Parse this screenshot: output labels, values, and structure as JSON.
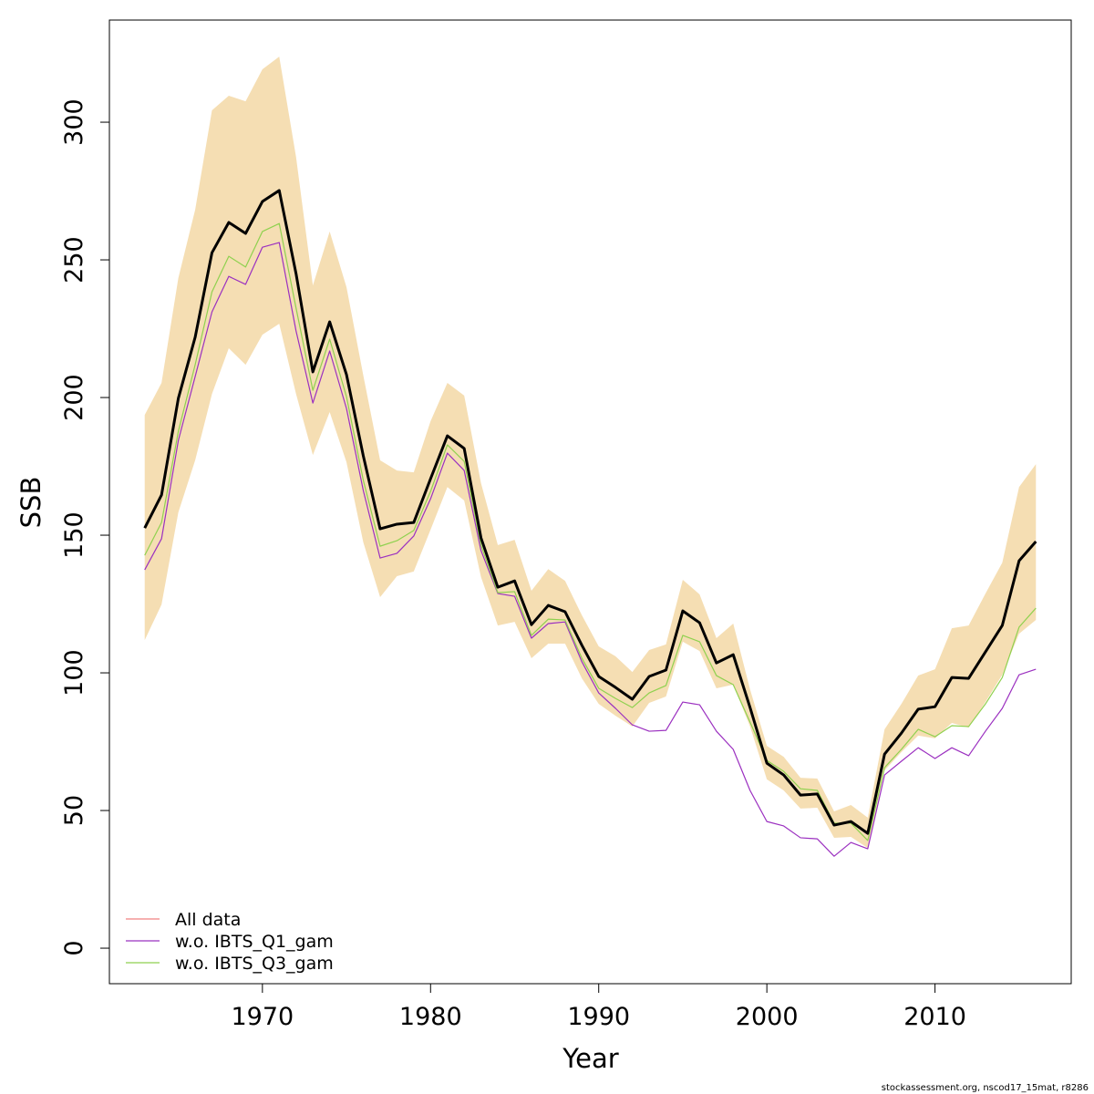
{
  "chart_data": {
    "type": "line",
    "x": [
      1963,
      1964,
      1965,
      1966,
      1967,
      1968,
      1969,
      1970,
      1971,
      1972,
      1973,
      1974,
      1975,
      1976,
      1977,
      1978,
      1979,
      1980,
      1981,
      1982,
      1983,
      1984,
      1985,
      1986,
      1987,
      1988,
      1989,
      1990,
      1991,
      1992,
      1993,
      1994,
      1995,
      1996,
      1997,
      1998,
      1999,
      2000,
      2001,
      2002,
      2003,
      2004,
      2005,
      2006,
      2007,
      2008,
      2009,
      2010,
      2011,
      2012,
      2013,
      2014,
      2015,
      2016
    ],
    "xlabel": "Year",
    "ylabel": "SSB",
    "xlim": [
      1960.9,
      2018.1
    ],
    "ylim": [
      -12.9,
      337.1
    ],
    "xticks": [
      1970,
      1980,
      1990,
      2000,
      2010
    ],
    "yticks": [
      0,
      50,
      100,
      150,
      200,
      250,
      300
    ],
    "legend": "bottomleft",
    "band": {
      "color": "#f5deb3",
      "lower": [
        111.9,
        124.8,
        158.3,
        177.2,
        201.3,
        217.9,
        211.9,
        222.8,
        226.8,
        201.3,
        179.1,
        194.7,
        176.5,
        147.4,
        127.5,
        135.1,
        136.8,
        152,
        167.5,
        162.6,
        134.8,
        117.2,
        118.5,
        105.3,
        110.6,
        110.6,
        98,
        88.7,
        84.4,
        80.5,
        89.1,
        91.4,
        111.3,
        107.9,
        94.4,
        95.7,
        80.5,
        61.3,
        57.3,
        50.7,
        51,
        40.1,
        40.4,
        36.4,
        64.6,
        71.2,
        77.2,
        76.2,
        81.8,
        80.1,
        89.4,
        99.3,
        114.2,
        119.2
      ],
      "upper": [
        193.7,
        205.3,
        243.4,
        268.2,
        304.3,
        309.6,
        307.6,
        319.2,
        323.8,
        287.4,
        240.7,
        260.3,
        240.1,
        208,
        177.2,
        173.5,
        172.8,
        191.4,
        205.3,
        200.7,
        168.9,
        146.4,
        148.3,
        129.8,
        137.7,
        133.4,
        120.9,
        109.6,
        106,
        100.3,
        108.3,
        110.3,
        133.8,
        128.5,
        112.6,
        117.9,
        94,
        73.5,
        69.5,
        61.9,
        61.6,
        49.7,
        52,
        47.4,
        79.5,
        88.7,
        99,
        101.3,
        116.2,
        117.2,
        128.8,
        140,
        167.5,
        175.8
      ]
    },
    "estimate": {
      "color": "#000000",
      "values": [
        152.6,
        164.6,
        199.7,
        221.9,
        252.6,
        263.6,
        259.6,
        271.2,
        275.2,
        245,
        209.3,
        227.5,
        208.3,
        178.8,
        152.3,
        154,
        154.6,
        170.5,
        186.1,
        181.5,
        149,
        131.1,
        133.4,
        117.5,
        124.5,
        122.2,
        110,
        98.7,
        94.7,
        90.4,
        98.7,
        101,
        122.5,
        118.2,
        103.6,
        106.6,
        87.4,
        67.2,
        62.9,
        55.6,
        56,
        44.7,
        46,
        41.7,
        70.5,
        78.1,
        86.8,
        87.7,
        98.3,
        98,
        107.6,
        117.2,
        140.7,
        147.7
      ]
    },
    "series": [
      {
        "name": "All data",
        "color": "#f08080",
        "values": [
          152.6,
          164.6,
          199.7,
          221.9,
          252.6,
          263.6,
          259.6,
          271.2,
          275.2,
          245,
          209.3,
          227.5,
          208.3,
          178.8,
          152.3,
          154,
          154.6,
          170.5,
          186.1,
          181.5,
          149,
          131.1,
          133.4,
          117.5,
          124.5,
          122.2,
          110,
          98.7,
          94.7,
          90.4,
          98.7,
          101,
          122.5,
          118.2,
          103.6,
          106.6,
          87.4,
          67.2,
          62.9,
          55.6,
          56,
          44.7,
          46,
          41.7,
          70.5,
          78.1,
          86.8,
          87.7,
          98.3,
          98,
          107.6,
          117.2,
          140.7,
          147.7
        ]
      },
      {
        "name": "w.o. IBTS_Q1_gam",
        "color": "#9b30c0",
        "values": [
          137.4,
          148.7,
          184.4,
          207.6,
          231.1,
          244,
          241.1,
          254.6,
          256.3,
          224.2,
          198,
          216.9,
          196,
          166.2,
          141.7,
          143.4,
          149.7,
          163.2,
          179.8,
          173.5,
          144.4,
          128.8,
          127.8,
          112.6,
          117.9,
          118.5,
          104,
          92.7,
          87.1,
          81.1,
          78.8,
          79.1,
          89.4,
          88.4,
          78.8,
          72.2,
          57.3,
          46,
          44.4,
          40.1,
          39.7,
          33.4,
          38.4,
          36.1,
          62.9,
          67.9,
          72.8,
          68.9,
          72.8,
          69.9,
          78.8,
          87.1,
          99.3,
          101.3
        ]
      },
      {
        "name": "w.o. IBTS_Q3_gam",
        "color": "#8fd14f",
        "values": [
          142.7,
          154.6,
          187.7,
          211.9,
          238.4,
          251.3,
          247.4,
          260.3,
          263.2,
          232.5,
          202.6,
          221.2,
          200.3,
          169.9,
          146,
          148,
          151.7,
          165.9,
          182.8,
          176.8,
          146.4,
          129.1,
          129.5,
          113.6,
          119.5,
          119.2,
          105.3,
          94.4,
          90.7,
          87.4,
          92.7,
          95.4,
          113.6,
          111.3,
          99,
          95.7,
          82.1,
          68.2,
          64.2,
          57.9,
          57.3,
          45.4,
          45.4,
          39.1,
          65.6,
          72.2,
          79.5,
          76.8,
          80.8,
          80.5,
          88.7,
          98.3,
          116.6,
          123.5
        ]
      }
    ],
    "footer": "stockassessment.org, nscod17_15mat, r8286"
  }
}
